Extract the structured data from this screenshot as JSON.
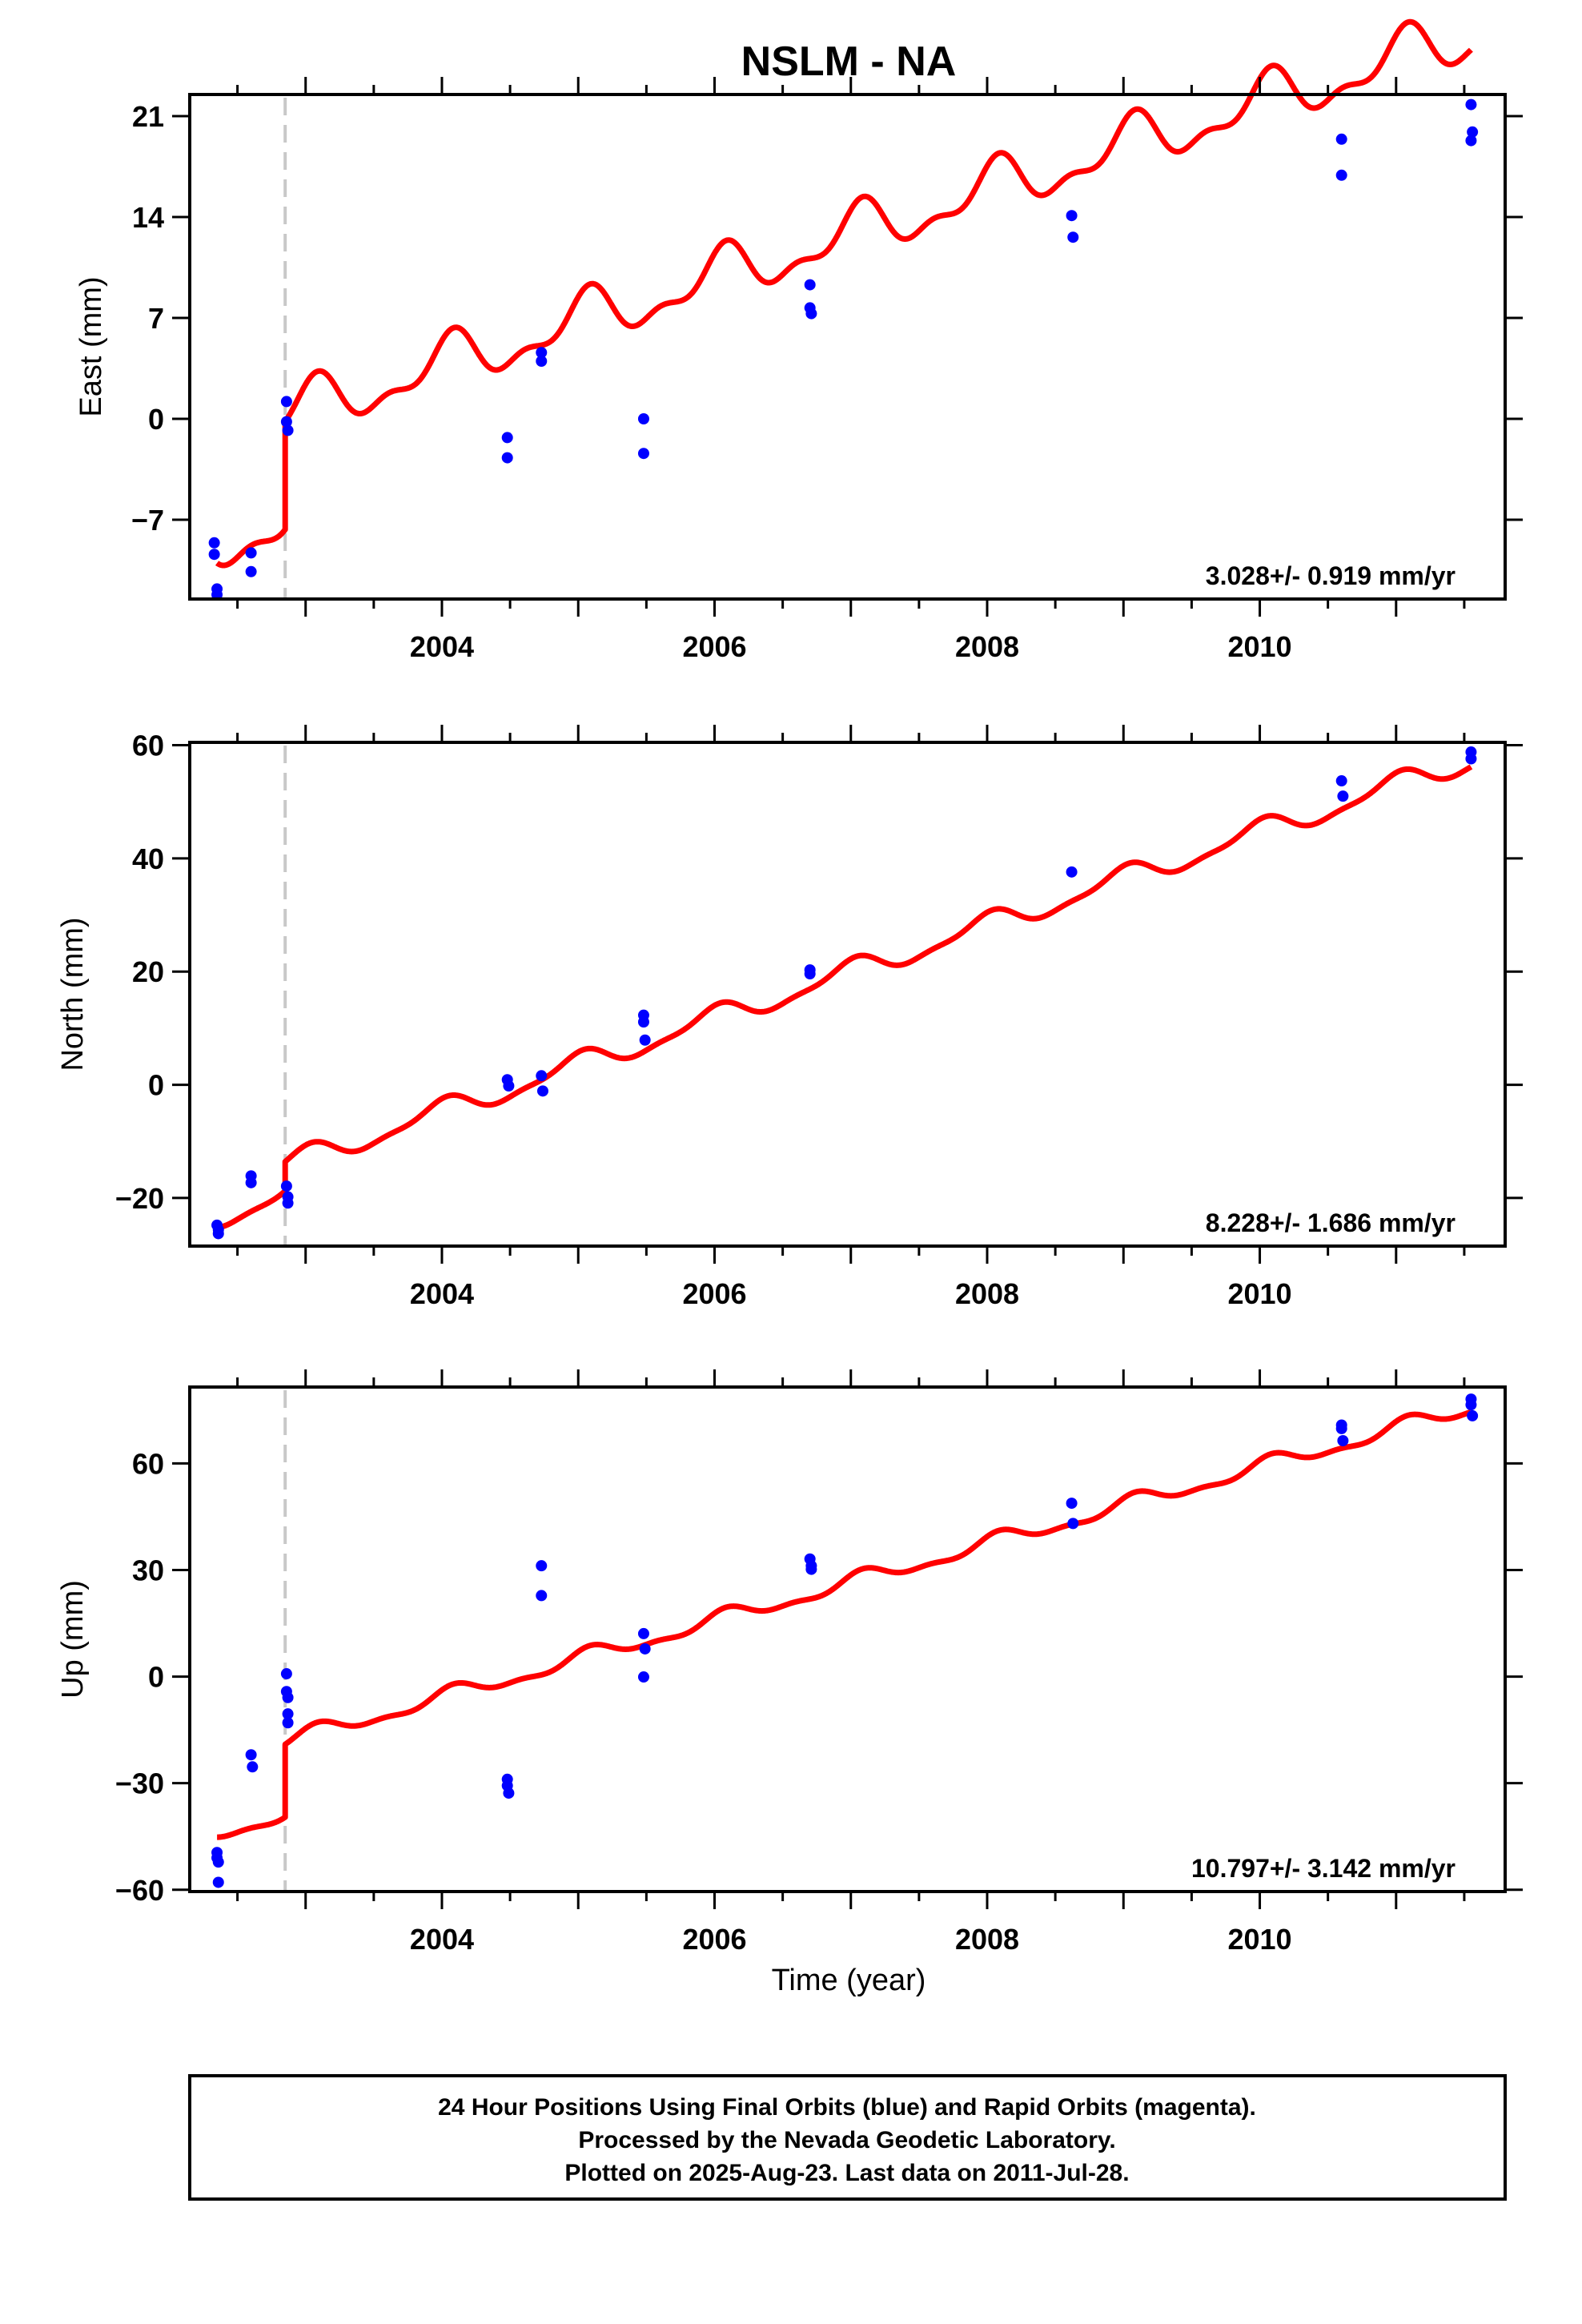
{
  "title": "NSLM - NA",
  "xlabel": "Time (year)",
  "footer": {
    "line1": "24 Hour Positions Using Final Orbits (blue) and Rapid Orbits (magenta).",
    "line2": "Processed by the Nevada Geodetic Laboratory.",
    "line3": "Plotted on 2025-Aug-23. Last data on 2011-Jul-28."
  },
  "colors": {
    "data": "#0000ff",
    "model": "#ff0000",
    "event": "#c8c8c8",
    "frame": "#000000"
  },
  "chart_data": [
    {
      "type": "scatter",
      "ylabel": "East (mm)",
      "rate_label": "3.028+/- 0.919 mm/yr",
      "xlim": [
        2002.15,
        2011.8
      ],
      "ylim": [
        -12.5,
        22.5
      ],
      "xticks": [
        2004,
        2006,
        2008,
        2010
      ],
      "yticks": [
        -7,
        0,
        7,
        14,
        21
      ],
      "ytick_labels": [
        "−7",
        "0",
        "7",
        "14",
        "21"
      ],
      "event_line_x": 2002.85,
      "points": [
        [
          2002.33,
          -8.6
        ],
        [
          2002.33,
          -9.4
        ],
        [
          2002.35,
          -11.8
        ],
        [
          2002.35,
          -12.2
        ],
        [
          2002.6,
          -9.3
        ],
        [
          2002.6,
          -10.6
        ],
        [
          2002.86,
          1.2
        ],
        [
          2002.86,
          -0.2
        ],
        [
          2002.87,
          -0.8
        ],
        [
          2004.48,
          -1.3
        ],
        [
          2004.48,
          -2.7
        ],
        [
          2004.73,
          4.6
        ],
        [
          2004.73,
          4.0
        ],
        [
          2005.48,
          0.0
        ],
        [
          2005.48,
          -2.4
        ],
        [
          2006.7,
          9.3
        ],
        [
          2006.7,
          7.7
        ],
        [
          2006.71,
          7.3
        ],
        [
          2008.62,
          14.1
        ],
        [
          2008.63,
          12.6
        ],
        [
          2010.6,
          19.4
        ],
        [
          2010.6,
          16.9
        ],
        [
          2011.55,
          21.8
        ],
        [
          2011.55,
          19.3
        ],
        [
          2011.56,
          19.9
        ]
      ],
      "model": {
        "intercept": -8.8,
        "rate": 3.028,
        "t0": 2002.35,
        "amp": 1.6,
        "phase": 1.2,
        "amp2": 0.8,
        "phase2": 0.3,
        "step_x": 2002.85,
        "step": 7.5
      }
    },
    {
      "type": "scatter",
      "ylabel": "North (mm)",
      "rate_label": "8.228+/- 1.686 mm/yr",
      "xlim": [
        2002.15,
        2011.8
      ],
      "ylim": [
        -28.5,
        60.5
      ],
      "xticks": [
        2004,
        2006,
        2008,
        2010
      ],
      "yticks": [
        -20,
        0,
        20,
        40,
        60
      ],
      "ytick_labels": [
        "−20",
        "0",
        "20",
        "40",
        "60"
      ],
      "event_line_x": 2002.85,
      "points": [
        [
          2002.35,
          -24.8
        ],
        [
          2002.36,
          -25.6
        ],
        [
          2002.36,
          -26.3
        ],
        [
          2002.6,
          -16.1
        ],
        [
          2002.6,
          -17.3
        ],
        [
          2002.86,
          -17.9
        ],
        [
          2002.87,
          -19.8
        ],
        [
          2002.87,
          -20.9
        ],
        [
          2004.48,
          0.9
        ],
        [
          2004.49,
          -0.2
        ],
        [
          2004.73,
          1.6
        ],
        [
          2004.74,
          -1.1
        ],
        [
          2005.48,
          12.3
        ],
        [
          2005.48,
          11.1
        ],
        [
          2005.49,
          7.9
        ],
        [
          2006.7,
          20.3
        ],
        [
          2006.7,
          19.6
        ],
        [
          2008.62,
          37.6
        ],
        [
          2010.6,
          53.7
        ],
        [
          2010.61,
          51.0
        ],
        [
          2011.55,
          58.8
        ],
        [
          2011.55,
          57.6
        ]
      ],
      "model": {
        "intercept": -23.5,
        "rate": 8.228,
        "t0": 2002.35,
        "amp": 1.9,
        "phase": 1.6,
        "amp2": 0.6,
        "phase2": 0.7,
        "step_x": 2002.85,
        "step": 5.2
      }
    },
    {
      "type": "scatter",
      "ylabel": "Up (mm)",
      "rate_label": "10.797+/- 3.142 mm/yr",
      "xlim": [
        2002.15,
        2011.8
      ],
      "ylim": [
        -60.5,
        81.5
      ],
      "xticks": [
        2004,
        2006,
        2008,
        2010
      ],
      "yticks": [
        -60,
        -30,
        0,
        30,
        60
      ],
      "ytick_labels": [
        "−60",
        "−30",
        "0",
        "30",
        "60"
      ],
      "event_line_x": 2002.85,
      "points": [
        [
          2002.35,
          -49.5
        ],
        [
          2002.35,
          -51.0
        ],
        [
          2002.36,
          -52.2
        ],
        [
          2002.36,
          -57.9
        ],
        [
          2002.6,
          -22.0
        ],
        [
          2002.61,
          -25.4
        ],
        [
          2002.86,
          0.8
        ],
        [
          2002.86,
          -4.2
        ],
        [
          2002.87,
          -5.9
        ],
        [
          2002.87,
          -10.5
        ],
        [
          2002.87,
          -13.0
        ],
        [
          2004.48,
          -28.9
        ],
        [
          2004.48,
          -30.7
        ],
        [
          2004.49,
          -32.8
        ],
        [
          2004.73,
          31.2
        ],
        [
          2004.73,
          22.8
        ],
        [
          2005.48,
          12.1
        ],
        [
          2005.49,
          7.8
        ],
        [
          2005.48,
          -0.1
        ],
        [
          2006.7,
          33.1
        ],
        [
          2006.71,
          31.2
        ],
        [
          2006.71,
          30.2
        ],
        [
          2008.62,
          48.8
        ],
        [
          2008.63,
          43.1
        ],
        [
          2010.6,
          70.8
        ],
        [
          2010.6,
          69.8
        ],
        [
          2010.61,
          66.4
        ],
        [
          2011.55,
          78.1
        ],
        [
          2011.55,
          76.5
        ],
        [
          2011.56,
          73.4
        ]
      ],
      "model": {
        "intercept": -44.2,
        "rate": 10.797,
        "t0": 2002.35,
        "amp": 2.0,
        "phase": 1.0,
        "amp2": 0.9,
        "phase2": 0.5,
        "step_x": 2002.85,
        "step": 20.5
      }
    }
  ]
}
